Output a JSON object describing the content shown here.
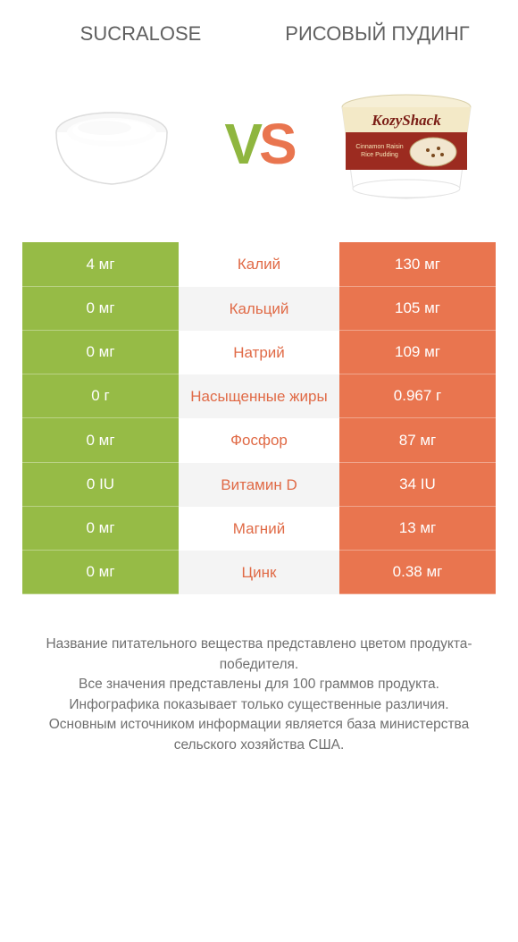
{
  "colors": {
    "left": "#96bb46",
    "right": "#e9754f",
    "nutrient_left_win": "#8eb13f",
    "nutrient_right_win": "#e06a46",
    "text_grey": "#606060"
  },
  "header": {
    "left_title": "SUCRALOSE",
    "right_title": "РИСОВЫЙ ПУДИНГ"
  },
  "vs": {
    "v": "V",
    "s": "S"
  },
  "rows": [
    {
      "left": "4 мг",
      "name": "Калий",
      "right": "130 мг",
      "winner": "right"
    },
    {
      "left": "0 мг",
      "name": "Кальций",
      "right": "105 мг",
      "winner": "right"
    },
    {
      "left": "0 мг",
      "name": "Натрий",
      "right": "109 мг",
      "winner": "right"
    },
    {
      "left": "0 г",
      "name": "Насыщенные жиры",
      "right": "0.967 г",
      "winner": "right"
    },
    {
      "left": "0 мг",
      "name": "Фосфор",
      "right": "87 мг",
      "winner": "right"
    },
    {
      "left": "0 IU",
      "name": "Витамин D",
      "right": "34 IU",
      "winner": "right"
    },
    {
      "left": "0 мг",
      "name": "Магний",
      "right": "13 мг",
      "winner": "right"
    },
    {
      "left": "0 мг",
      "name": "Цинк",
      "right": "0.38 мг",
      "winner": "right"
    }
  ],
  "footer": {
    "line1": "Название питательного вещества представлено цветом продукта-победителя.",
    "line2": "Все значения представлены для 100 граммов продукта.",
    "line3": "Инфографика показывает только существенные различия.",
    "line4": "Основным источником информации является база министерства сельского хозяйства США."
  },
  "product_image_right": {
    "brand": "KozyShack",
    "subline": "Cinnamon Raisin Rice Pudding"
  }
}
